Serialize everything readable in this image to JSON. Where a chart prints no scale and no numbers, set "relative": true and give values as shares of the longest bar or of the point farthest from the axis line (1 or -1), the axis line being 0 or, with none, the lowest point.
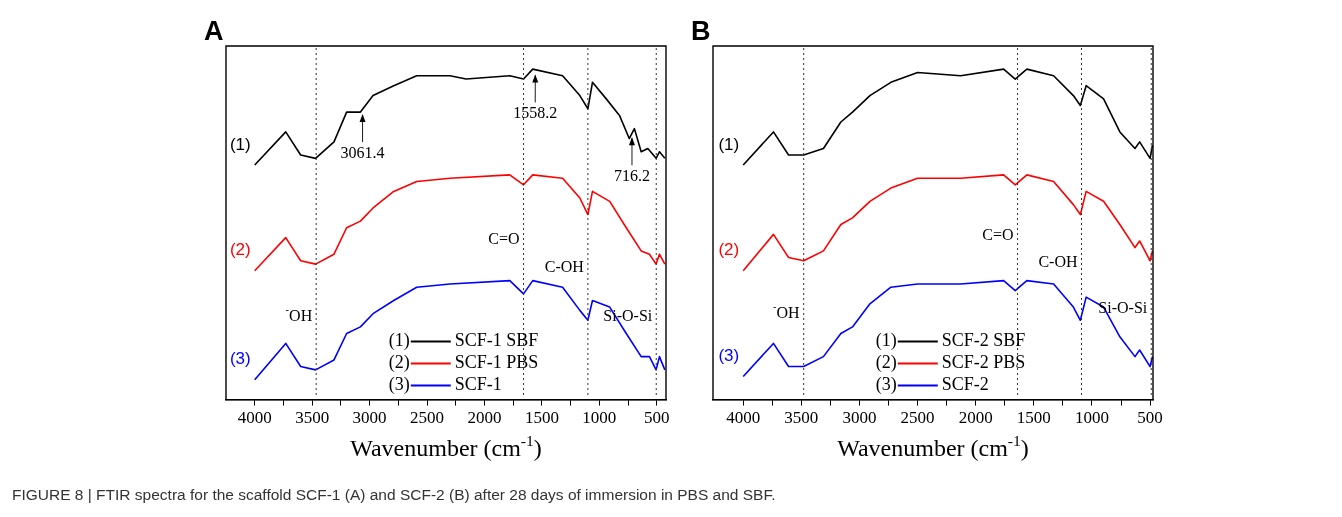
{
  "chart_data": [
    {
      "type": "line",
      "title": "A",
      "xlabel": "Wavenumber (cm$^{-1}$)",
      "relative": true,
      "marker": "none",
      "legend": "bottom",
      "grid": false,
      "xlim": [
        4250,
        420
      ],
      "xticks": [
        4000,
        {
          "value": 3750,
          "label": null
        },
        3500,
        {
          "value": 3250,
          "label": null
        },
        3000,
        {
          "value": 2750,
          "label": null
        },
        2500,
        {
          "value": 2250,
          "label": null
        },
        2000,
        {
          "value": 1750,
          "label": null
        },
        1500,
        {
          "value": 1250,
          "label": null
        },
        1000,
        {
          "value": 750,
          "label": null
        },
        500
      ],
      "series": [
        {
          "name": "(1) SCF-1 SBF",
          "color": "#000000",
          "x": [
            4000,
            3730,
            3600,
            3470,
            3310,
            3200,
            3080,
            2970,
            2790,
            2590,
            2300,
            2160,
            1780,
            1660,
            1580,
            1320,
            1170,
            1100,
            1060,
            940,
            825,
            740,
            695,
            636,
            578,
            506,
            477,
            430
          ],
          "values": [
            0.71,
            0.81,
            0.74,
            0.73,
            0.78,
            0.87,
            0.87,
            0.92,
            0.95,
            0.98,
            0.98,
            0.97,
            0.98,
            0.97,
            1.0,
            0.98,
            0.92,
            0.88,
            0.96,
            0.91,
            0.86,
            0.79,
            0.82,
            0.75,
            0.76,
            0.73,
            0.75,
            0.73
          ]
        },
        {
          "name": "(2) SCF-1 PBS",
          "color": "#ff0000",
          "x": [
            4000,
            3730,
            3600,
            3470,
            3310,
            3200,
            3080,
            2970,
            2790,
            2590,
            2300,
            1780,
            1660,
            1580,
            1320,
            1170,
            1100,
            1060,
            910,
            766,
            636,
            564,
            506,
            477,
            430
          ],
          "values": [
            0.39,
            0.49,
            0.42,
            0.41,
            0.44,
            0.52,
            0.54,
            0.58,
            0.63,
            0.66,
            0.67,
            0.68,
            0.65,
            0.68,
            0.67,
            0.61,
            0.56,
            0.63,
            0.6,
            0.52,
            0.45,
            0.44,
            0.41,
            0.44,
            0.41
          ]
        },
        {
          "name": "(3) SCF-1",
          "color": "#0000ff",
          "x": [
            4000,
            3730,
            3600,
            3470,
            3310,
            3200,
            3080,
            2970,
            2790,
            2590,
            2300,
            1780,
            1660,
            1580,
            1320,
            1170,
            1100,
            1060,
            910,
            766,
            636,
            564,
            506,
            477,
            430
          ],
          "values": [
            0.06,
            0.17,
            0.1,
            0.09,
            0.12,
            0.2,
            0.22,
            0.26,
            0.3,
            0.34,
            0.35,
            0.36,
            0.32,
            0.36,
            0.34,
            0.27,
            0.24,
            0.3,
            0.28,
            0.2,
            0.13,
            0.13,
            0.09,
            0.13,
            0.09
          ]
        }
      ],
      "ref_lines": [
        {
          "axis": "x",
          "value": 3465,
          "label": "$^{-}$OH",
          "color": "#333333",
          "line_style": "dotted"
        },
        {
          "axis": "x",
          "value": 1660,
          "label": "C=O",
          "color": "#333333",
          "line_style": "dotted"
        },
        {
          "axis": "x",
          "value": 1100,
          "label": "C-OH",
          "color": "#333333",
          "line_style": "dotted"
        },
        {
          "axis": "x",
          "value": 505,
          "label": "Si-O-Si",
          "color": "#333333",
          "line_style": "dotted"
        }
      ],
      "annotations": [
        {
          "text": "3061.4",
          "x": 3061.4,
          "y": 0.87
        },
        {
          "text": "1558.2",
          "x": 1558.2,
          "y": 0.99
        },
        {
          "text": "716.2",
          "x": 716.2,
          "y": 0.8
        },
        "(1)",
        "(2)",
        "(3)",
        "FIGURE 8 | FTIR spectra for the scaffold SCF-1 (A) and SCF-2 (B) after 28 days of immersion in PBS and SBF."
      ]
    },
    {
      "type": "line",
      "title": "B",
      "xlabel": "Wavenumber (cm$^{-1}$)",
      "relative": true,
      "marker": "none",
      "legend": "bottom",
      "grid": false,
      "xlim": [
        4260,
        475
      ],
      "xticks": [
        4000,
        {
          "value": 3750,
          "label": null
        },
        3500,
        {
          "value": 3250,
          "label": null
        },
        3000,
        {
          "value": 2750,
          "label": null
        },
        2500,
        {
          "value": 2250,
          "label": null
        },
        2000,
        {
          "value": 1750,
          "label": null
        },
        1500,
        {
          "value": 1250,
          "label": null
        },
        1000,
        {
          "value": 750,
          "label": null
        },
        500
      ],
      "series": [
        {
          "name": "(1) SCF-2 SBF",
          "color": "#000000",
          "x": [
            4000,
            3740,
            3610,
            3480,
            3310,
            3160,
            3060,
            2910,
            2730,
            2500,
            2130,
            1760,
            1660,
            1560,
            1330,
            1160,
            1100,
            1050,
            900,
            760,
            630,
            590,
            500,
            480
          ],
          "values": [
            0.71,
            0.81,
            0.74,
            0.74,
            0.76,
            0.84,
            0.87,
            0.92,
            0.96,
            0.99,
            0.98,
            1.0,
            0.97,
            1.0,
            0.98,
            0.92,
            0.89,
            0.95,
            0.91,
            0.81,
            0.76,
            0.78,
            0.73,
            0.77
          ]
        },
        {
          "name": "(2) SCF-2 PBS",
          "color": "#ff0000",
          "x": [
            4000,
            3740,
            3610,
            3480,
            3310,
            3160,
            3060,
            2910,
            2730,
            2500,
            2130,
            1760,
            1660,
            1560,
            1330,
            1160,
            1100,
            1050,
            900,
            760,
            630,
            590,
            500,
            480
          ],
          "values": [
            0.39,
            0.5,
            0.43,
            0.42,
            0.45,
            0.53,
            0.55,
            0.6,
            0.64,
            0.67,
            0.67,
            0.68,
            0.65,
            0.68,
            0.66,
            0.59,
            0.56,
            0.63,
            0.6,
            0.53,
            0.46,
            0.48,
            0.42,
            0.45
          ]
        },
        {
          "name": "(3) SCF-2",
          "color": "#0000ff",
          "x": [
            4000,
            3740,
            3610,
            3480,
            3310,
            3160,
            3060,
            2910,
            2730,
            2500,
            2130,
            1760,
            1660,
            1560,
            1330,
            1160,
            1100,
            1050,
            900,
            760,
            630,
            590,
            500,
            480
          ],
          "values": [
            0.07,
            0.17,
            0.1,
            0.1,
            0.13,
            0.2,
            0.22,
            0.29,
            0.34,
            0.35,
            0.35,
            0.36,
            0.33,
            0.36,
            0.35,
            0.28,
            0.24,
            0.31,
            0.28,
            0.19,
            0.13,
            0.15,
            0.1,
            0.13
          ]
        }
      ],
      "ref_lines": [
        {
          "axis": "x",
          "value": 3480,
          "label": "$^{-}$OH",
          "color": "#333333",
          "line_style": "dotted"
        },
        {
          "axis": "x",
          "value": 1640,
          "label": "C=O",
          "color": "#333333",
          "line_style": "dotted"
        },
        {
          "axis": "x",
          "value": 1090,
          "label": "C-OH",
          "color": "#333333",
          "line_style": "dotted"
        },
        {
          "axis": "x",
          "value": 490,
          "label": "Si-O-Si",
          "color": "#333333",
          "line_style": "dotted"
        }
      ],
      "annotations": [
        "(1)",
        "(2)",
        "(3)"
      ]
    }
  ]
}
